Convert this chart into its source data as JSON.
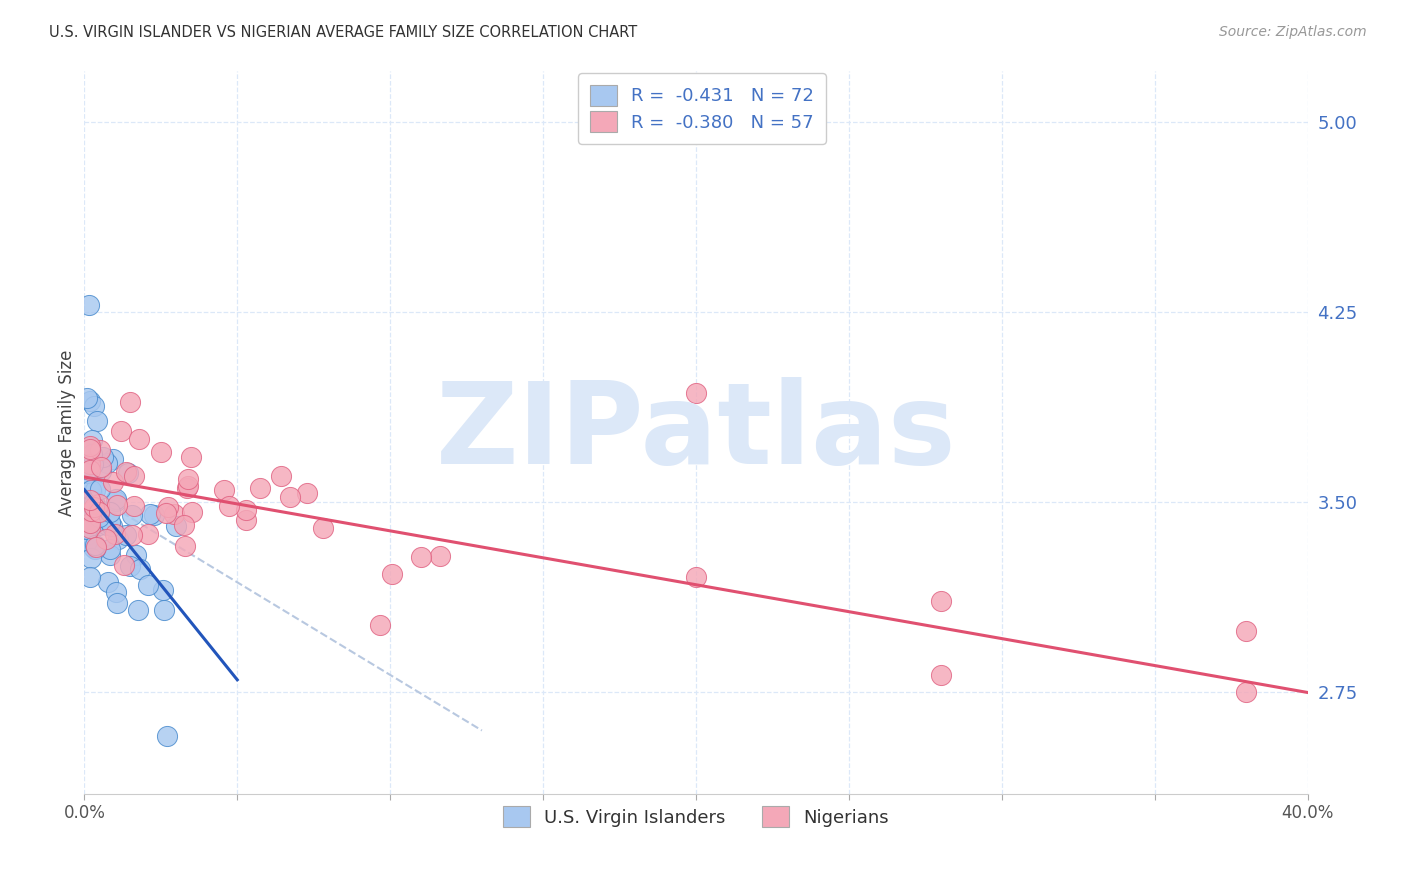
{
  "title": "U.S. VIRGIN ISLANDER VS NIGERIAN AVERAGE FAMILY SIZE CORRELATION CHART",
  "source": "Source: ZipAtlas.com",
  "ylabel": "Average Family Size",
  "right_yticks": [
    2.75,
    3.5,
    4.25,
    5.0
  ],
  "xlim": [
    0.0,
    0.4
  ],
  "ylim": [
    2.35,
    5.2
  ],
  "legend_line1": "R =  -0.431   N = 72",
  "legend_line2": "R =  -0.380   N = 57",
  "watermark": "ZIPatlas",
  "blue_face": "#a8c8f0",
  "blue_edge": "#4488cc",
  "pink_face": "#f4a8b8",
  "pink_edge": "#e06080",
  "blue_trend": "#2255bb",
  "pink_trend": "#e05070",
  "dashed_color": "#b8c8e0",
  "grid_color": "#dce8f8",
  "right_tick_color": "#4472c4",
  "title_color": "#333333",
  "source_color": "#999999",
  "watermark_color": "#dce8f8",
  "bg_color": "#ffffff",
  "n_vi": 72,
  "n_ng": 57,
  "vi_seed": 77,
  "ng_seed": 99
}
